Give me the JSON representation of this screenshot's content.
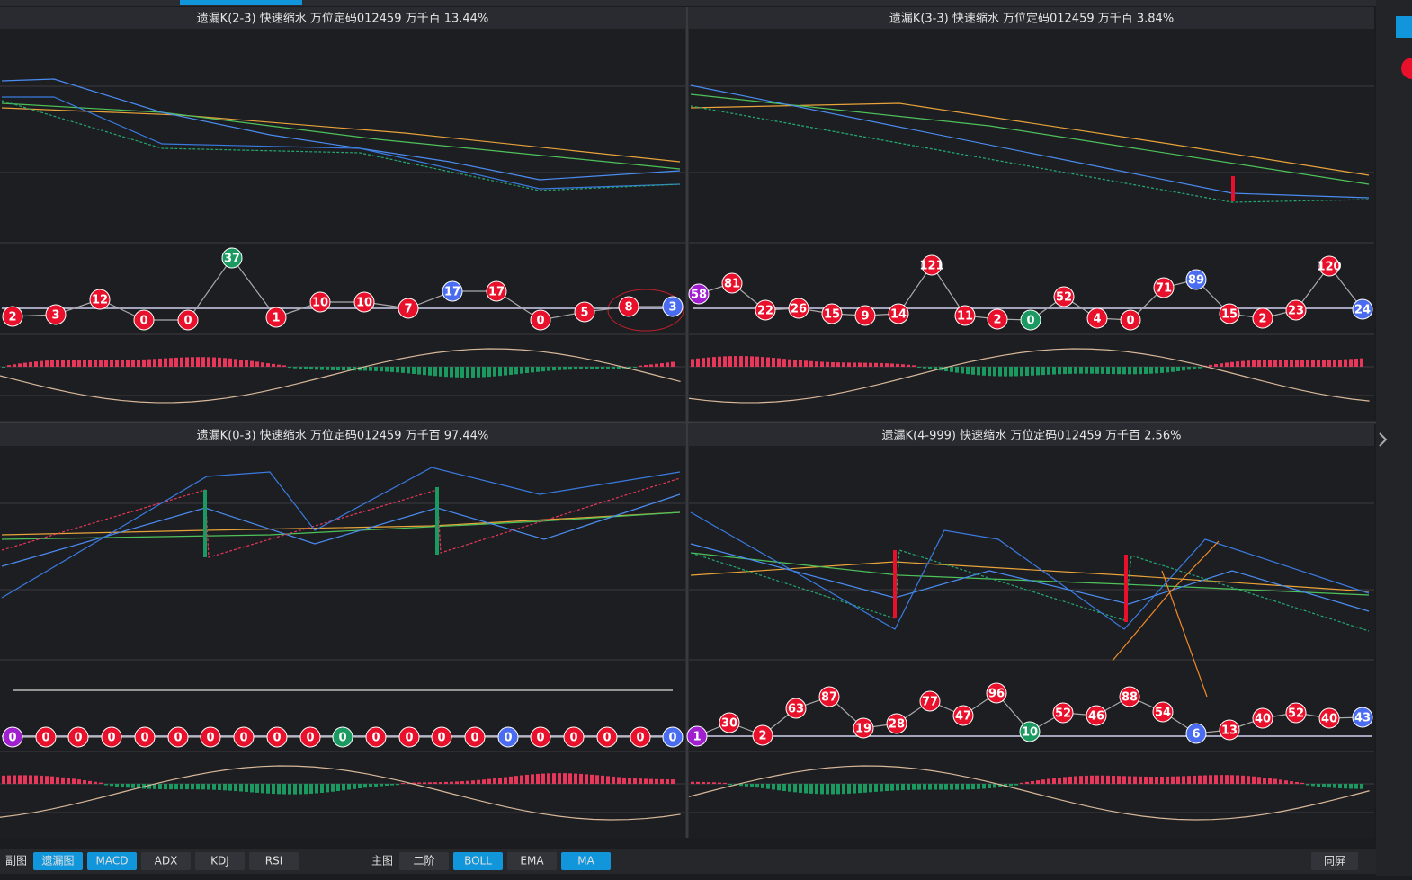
{
  "panels": [
    {
      "title": "遗漏K(2-3)  快速缩水  万位定码012459  万千百  13.44%",
      "badges": [
        {
          "value": 2,
          "color": "red"
        },
        {
          "value": 3,
          "color": "red"
        },
        {
          "value": 12,
          "color": "red"
        },
        {
          "value": 0,
          "color": "red"
        },
        {
          "value": 0,
          "color": "red"
        },
        {
          "value": 37,
          "color": "green"
        },
        {
          "value": 1,
          "color": "red"
        },
        {
          "value": 10,
          "color": "red"
        },
        {
          "value": 10,
          "color": "red"
        },
        {
          "value": 7,
          "color": "red"
        },
        {
          "value": 17,
          "color": "blue"
        },
        {
          "value": 17,
          "color": "red"
        },
        {
          "value": 0,
          "color": "red"
        },
        {
          "value": 5,
          "color": "red"
        },
        {
          "value": 8,
          "color": "red"
        },
        {
          "value": 3,
          "color": "blue"
        }
      ]
    },
    {
      "title": "遗漏K(3-3)  快速缩水  万位定码012459  万千百  3.84%",
      "badges": [
        {
          "value": 58,
          "color": "purple"
        },
        {
          "value": 81,
          "color": "red"
        },
        {
          "value": 22,
          "color": "red"
        },
        {
          "value": 26,
          "color": "red"
        },
        {
          "value": 15,
          "color": "red"
        },
        {
          "value": 9,
          "color": "red"
        },
        {
          "value": 14,
          "color": "red"
        },
        {
          "value": 121,
          "color": "red"
        },
        {
          "value": 11,
          "color": "red"
        },
        {
          "value": 2,
          "color": "red"
        },
        {
          "value": 0,
          "color": "green"
        },
        {
          "value": 52,
          "color": "red"
        },
        {
          "value": 4,
          "color": "red"
        },
        {
          "value": 0,
          "color": "red"
        },
        {
          "value": 71,
          "color": "red"
        },
        {
          "value": 89,
          "color": "blue"
        },
        {
          "value": 15,
          "color": "red"
        },
        {
          "value": 2,
          "color": "red"
        },
        {
          "value": 23,
          "color": "red"
        },
        {
          "value": 120,
          "color": "red"
        },
        {
          "value": 24,
          "color": "blue"
        }
      ]
    },
    {
      "title": "遗漏K(0-3)  快速缩水  万位定码012459  万千百  97.44%",
      "badges": [
        {
          "value": 0,
          "color": "purple"
        },
        {
          "value": 0,
          "color": "red"
        },
        {
          "value": 0,
          "color": "red"
        },
        {
          "value": 0,
          "color": "red"
        },
        {
          "value": 0,
          "color": "red"
        },
        {
          "value": 0,
          "color": "red"
        },
        {
          "value": 0,
          "color": "red"
        },
        {
          "value": 0,
          "color": "red"
        },
        {
          "value": 0,
          "color": "red"
        },
        {
          "value": 0,
          "color": "red"
        },
        {
          "value": 0,
          "color": "green"
        },
        {
          "value": 0,
          "color": "red"
        },
        {
          "value": 0,
          "color": "red"
        },
        {
          "value": 0,
          "color": "red"
        },
        {
          "value": 0,
          "color": "red"
        },
        {
          "value": 0,
          "color": "blue"
        },
        {
          "value": 0,
          "color": "red"
        },
        {
          "value": 0,
          "color": "red"
        },
        {
          "value": 0,
          "color": "red"
        },
        {
          "value": 0,
          "color": "red"
        },
        {
          "value": 0,
          "color": "blue"
        }
      ]
    },
    {
      "title": "遗漏K(4-999)  快速缩水  万位定码012459  万千百  2.56%",
      "badges": [
        {
          "value": 1,
          "color": "purple"
        },
        {
          "value": 30,
          "color": "red"
        },
        {
          "value": 2,
          "color": "red"
        },
        {
          "value": 63,
          "color": "red"
        },
        {
          "value": 87,
          "color": "red"
        },
        {
          "value": 19,
          "color": "red"
        },
        {
          "value": 28,
          "color": "red"
        },
        {
          "value": 77,
          "color": "red"
        },
        {
          "value": 47,
          "color": "red"
        },
        {
          "value": 96,
          "color": "red"
        },
        {
          "value": 10,
          "color": "green"
        },
        {
          "value": 52,
          "color": "red"
        },
        {
          "value": 46,
          "color": "red"
        },
        {
          "value": 88,
          "color": "red"
        },
        {
          "value": 54,
          "color": "red"
        },
        {
          "value": 6,
          "color": "blue"
        },
        {
          "value": 13,
          "color": "red"
        },
        {
          "value": 40,
          "color": "red"
        },
        {
          "value": 52,
          "color": "red"
        },
        {
          "value": 40,
          "color": "red"
        },
        {
          "value": 43,
          "color": "blue"
        }
      ]
    }
  ],
  "toolbar": {
    "sub_label": "副图",
    "sub_buttons": [
      {
        "label": "遗漏图",
        "active": true
      },
      {
        "label": "MACD",
        "active": true
      },
      {
        "label": "ADX",
        "active": false
      },
      {
        "label": "KDJ",
        "active": false
      },
      {
        "label": "RSI",
        "active": false
      }
    ],
    "main_label": "主图",
    "main_buttons": [
      {
        "label": "二阶",
        "active": false
      },
      {
        "label": "BOLL",
        "active": true
      },
      {
        "label": "EMA",
        "active": false
      },
      {
        "label": "MA",
        "active": true
      }
    ],
    "right_button": "同屏"
  }
}
